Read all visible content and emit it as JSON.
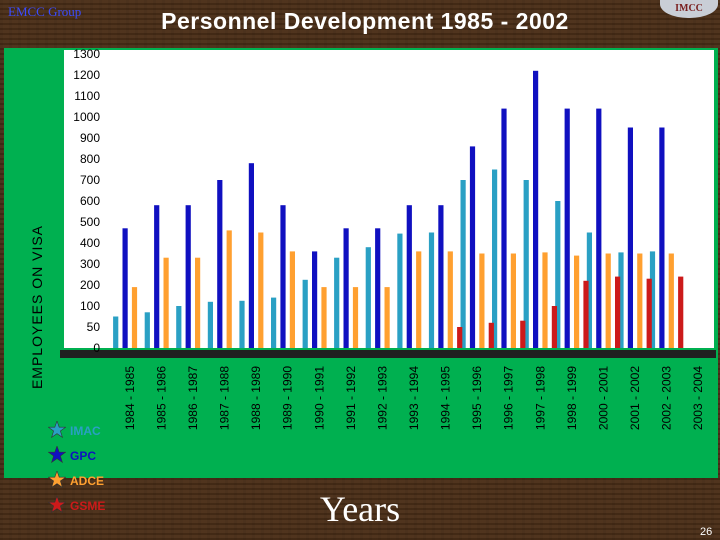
{
  "header": {
    "corner_label": "EMCC Group",
    "title": "Personnel  Development  1985 - 2002",
    "logo_text": "IMCC"
  },
  "footer": {
    "page_number": "26"
  },
  "colors": {
    "background": "#4a2e17",
    "panel": "#00b050",
    "plot": "#ffffff",
    "floor": "#202020"
  },
  "chart_data": {
    "type": "bar",
    "title": "Personnel  Development  1985 - 2002",
    "xlabel": "Years",
    "ylabel": "EMPLOYEES ON VISA",
    "ylim": [
      0,
      1300
    ],
    "yticks": [
      "0",
      "50",
      "100",
      "200",
      "300",
      "400",
      "500",
      "600",
      "700",
      "800",
      "900",
      "1000",
      "1100",
      "1200",
      "1300"
    ],
    "y_scale": "non-uniform (0-50-100 then steps of 100)",
    "grid": false,
    "legend_position": "bottom-left",
    "categories": [
      "1984 - 1985",
      "1985 - 1986",
      "1986 - 1987",
      "1987 - 1988",
      "1988 - 1989",
      "1989 - 1990",
      "1990 - 1991",
      "1991 - 1992",
      "1992 - 1993",
      "1993 - 1994",
      "1994 - 1995",
      "1995 - 1996",
      "1996 - 1997",
      "1997 - 1998",
      "1998 - 1999",
      "2000 - 2001",
      "2001 - 2002",
      "2002 - 2003",
      "2003 - 2004"
    ],
    "series": [
      {
        "name": "IMAC",
        "color": "#2aa0c4",
        "values": [
          75,
          85,
          100,
          120,
          125,
          140,
          225,
          330,
          380,
          445,
          450,
          700,
          750,
          700,
          600,
          450,
          355,
          360,
          null
        ]
      },
      {
        "name": "GPC",
        "color": "#1010c0",
        "values": [
          470,
          580,
          580,
          700,
          780,
          580,
          360,
          470,
          470,
          580,
          580,
          860,
          1040,
          1220,
          1040,
          1040,
          950,
          950,
          null
        ]
      },
      {
        "name": "ADCE",
        "color": "#ffa030",
        "values": [
          190,
          330,
          330,
          460,
          450,
          360,
          190,
          190,
          190,
          360,
          360,
          350,
          350,
          355,
          340,
          350,
          350,
          350,
          null
        ]
      },
      {
        "name": "GSME",
        "color": "#cc1a1a",
        "values": [
          null,
          null,
          null,
          null,
          null,
          null,
          null,
          null,
          null,
          null,
          50,
          60,
          65,
          100,
          220,
          240,
          230,
          240,
          null
        ]
      }
    ]
  }
}
